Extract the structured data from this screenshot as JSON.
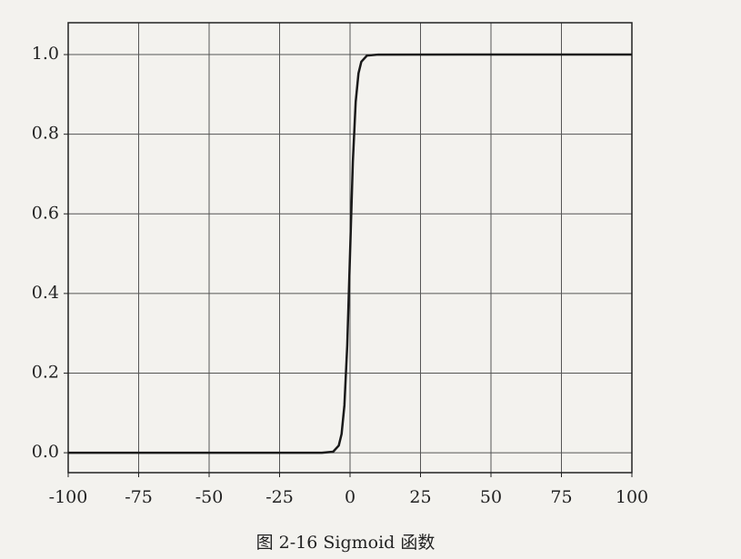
{
  "chart_data": {
    "type": "line",
    "caption": "图 2-16   Sigmoid 函数",
    "x": [
      -100,
      -10,
      -6,
      -4,
      -3,
      -2,
      -1,
      0,
      1,
      2,
      3,
      4,
      6,
      10,
      100
    ],
    "series": [
      {
        "color": "#1a1a1a",
        "values": [
          0,
          5e-05,
          0.0025,
          0.018,
          0.047,
          0.119,
          0.269,
          0.5,
          0.731,
          0.881,
          0.953,
          0.982,
          0.9975,
          0.99995,
          1
        ]
      }
    ],
    "xlim": [
      -100,
      100
    ],
    "xticks": [
      -100,
      -75,
      -50,
      -25,
      0,
      25,
      50,
      75,
      100
    ],
    "ylim": [
      -0.05,
      1.08
    ],
    "yticks": [
      {
        "value": 0,
        "label": "0.0"
      },
      0.2,
      0.4,
      0.6,
      0.8,
      {
        "value": 1,
        "label": "1.0"
      }
    ],
    "grid": true
  }
}
